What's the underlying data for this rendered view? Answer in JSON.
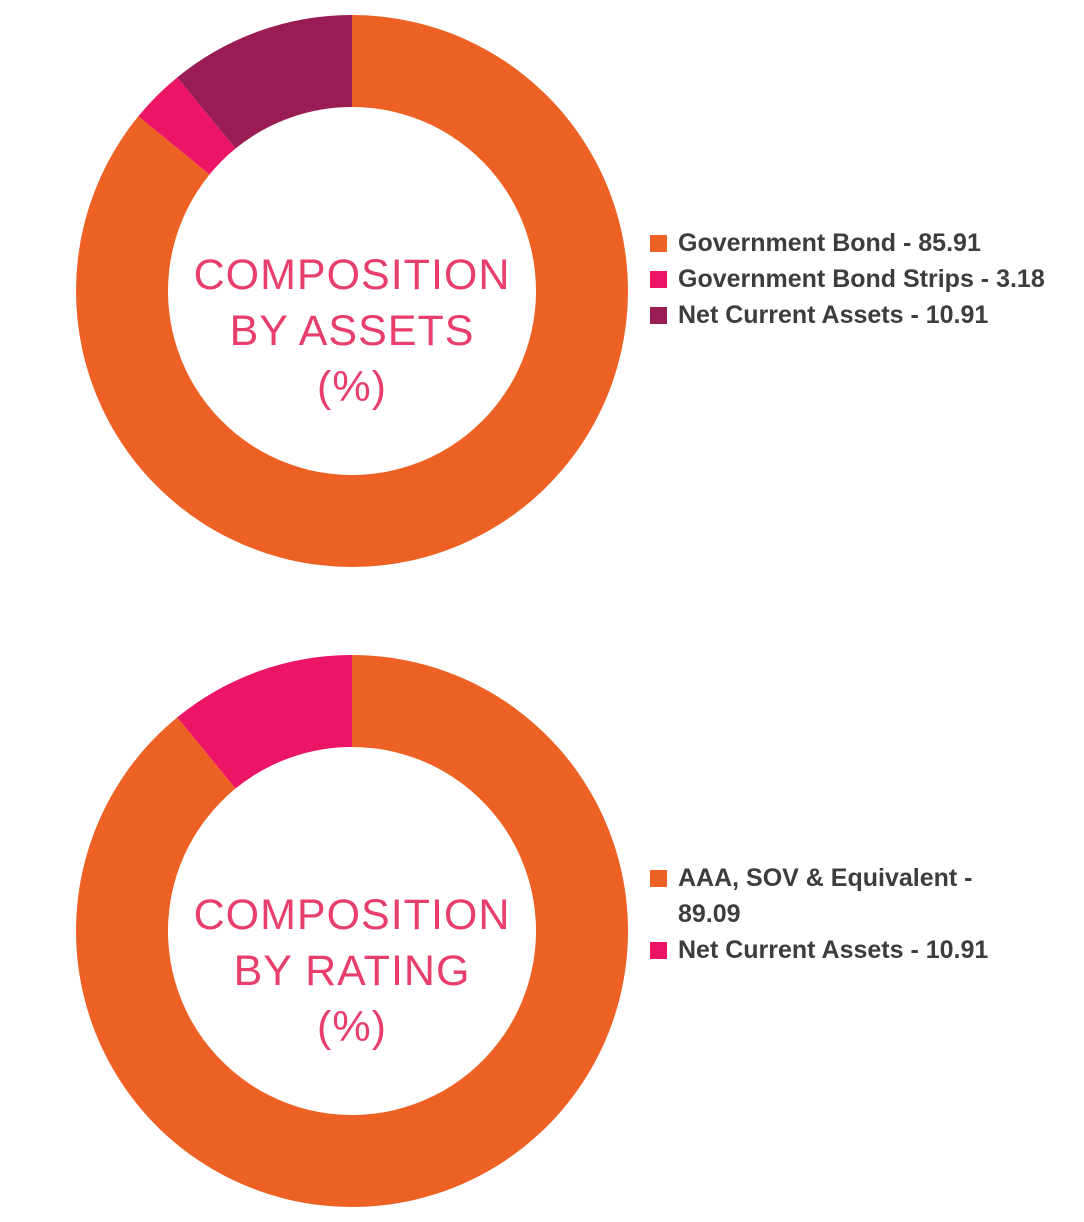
{
  "styles": {
    "background": "#FFFFFF",
    "legend_text_color": "#3D3D3D",
    "title_text_color": "#E83E6C"
  },
  "chart_data": [
    {
      "type": "donut",
      "title": "COMPOSITION BY ASSETS (%)",
      "title_lines": [
        "COMPOSITION",
        "BY ASSETS",
        "(%)"
      ],
      "title_color": "#E83E6C",
      "legend_position": "right",
      "start_angle_deg": 0,
      "direction": "clockwise",
      "total": 100,
      "series": [
        {
          "name": "Government Bond",
          "value": 85.91,
          "color": "#ED6124",
          "legend_label": "Government Bond - 85.91"
        },
        {
          "name": "Government Bond Strips",
          "value": 3.18,
          "color": "#EC1565",
          "legend_label": "Government Bond Strips - 3.18"
        },
        {
          "name": "Net Current Assets",
          "value": 10.91,
          "color": "#9A1C55",
          "legend_label": "Net Current Assets - 10.91"
        }
      ]
    },
    {
      "type": "donut",
      "title": "COMPOSITION BY RATING (%)",
      "title_lines": [
        "COMPOSITION",
        "BY RATING",
        "(%)"
      ],
      "title_color": "#E83E6C",
      "legend_position": "right",
      "start_angle_deg": 0,
      "direction": "clockwise",
      "total": 100,
      "series": [
        {
          "name": "AAA, SOV & Equivalent",
          "value": 89.09,
          "color": "#ED6124",
          "legend_label": "AAA, SOV & Equivalent - 89.09"
        },
        {
          "name": "Net Current Assets",
          "value": 10.91,
          "color": "#EC1565",
          "legend_label": "Net Current Assets - 10.91"
        }
      ]
    }
  ]
}
